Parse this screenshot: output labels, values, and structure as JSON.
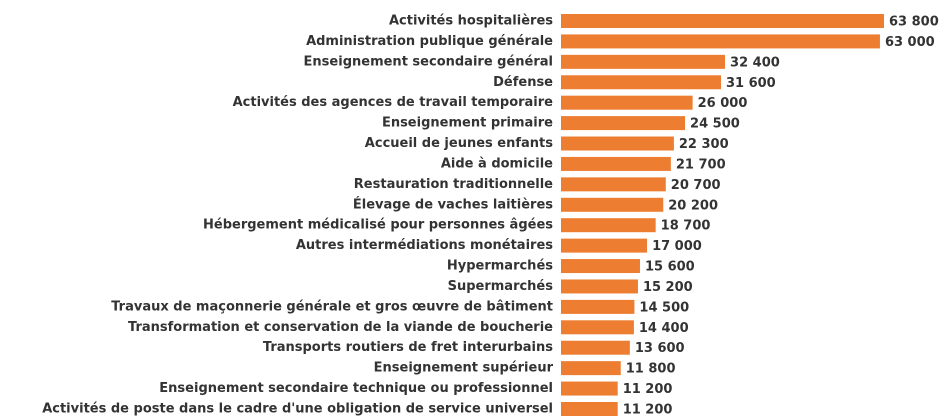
{
  "chart_data": {
    "type": "bar",
    "orientation": "horizontal",
    "color": "#ed7d31",
    "categories": [
      "Activités hospitalières",
      "Administration publique générale",
      "Enseignement secondaire général",
      "Défense",
      "Activités des agences de travail temporaire",
      "Enseignement primaire",
      "Accueil de jeunes enfants",
      "Aide à domicile",
      "Restauration traditionnelle",
      "Élevage de vaches laitières",
      "Hébergement médicalisé pour personnes âgées",
      "Autres intermédiations monétaires",
      "Hypermarchés",
      "Supermarchés",
      "Travaux de maçonnerie générale et gros œuvre de bâtiment",
      "Transformation et conservation de la viande de boucherie",
      "Transports routiers de fret interurbains",
      "Enseignement supérieur",
      "Enseignement secondaire technique ou professionnel",
      "Activités de poste dans le cadre d'une obligation de service universel"
    ],
    "values": [
      63800,
      63000,
      32400,
      31600,
      26000,
      24500,
      22300,
      21700,
      20700,
      20200,
      18700,
      17000,
      15600,
      15200,
      14500,
      14400,
      13600,
      11800,
      11200,
      11200
    ],
    "value_labels": [
      "63 800",
      "63 000",
      "32 400",
      "31 600",
      "26 000",
      "24 500",
      "22 300",
      "21 700",
      "20 700",
      "20 200",
      "18 700",
      "17 000",
      "15 600",
      "15 200",
      "14 500",
      "14 400",
      "13 600",
      "11 800",
      "11 200",
      "11 200"
    ]
  }
}
